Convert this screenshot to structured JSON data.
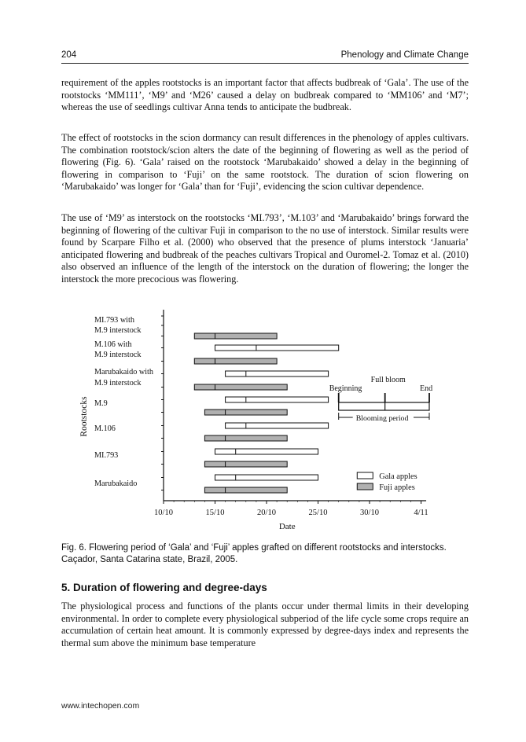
{
  "header": {
    "page_number": "204",
    "running_title": "Phenology and Climate Change"
  },
  "paragraphs": [
    "requirement of the apples rootstocks is an important factor that affects budbreak of ‘Gala’. The use of the rootstocks ‘MM111’, ‘M9’ and ‘M26’ caused a delay on budbreak compared to ‘MM106’ and ‘M7’; whereas the use of seedlings cultivar Anna tends to anticipate the budbreak.",
    "The effect of rootstocks in the scion dormancy can result differences in the phenology of apples cultivars. The combination rootstock/scion alters the date of the beginning of flowering as well as the period of flowering (Fig. 6). ‘Gala’ raised on the rootstock ‘Marubakaido’ showed a delay in the beginning of flowering in comparison to ‘Fuji’ on the same rootstock. The duration of scion flowering on ‘Marubakaido’ was longer for ‘Gala’ than for ‘Fuji’, evidencing the scion cultivar dependence.",
    "The use of ‘M9’ as interstock on the rootstocks ‘MI.793’, ‘M.103’ and ‘Marubakaido’ brings forward the beginning of flowering of the cultivar Fuji in comparison to the no use of interstock. Similar results were found by Scarpare Filho et al. (2000) who observed that the presence of plums interstock ‘Januaria’ anticipated flowering and budbreak of the peaches cultivars Tropical and Ouromel-2. Tomaz et al. (2010) also observed an influence of the length of the interstock on the duration of flowering; the longer the interstock the more precocious was flowering."
  ],
  "figure": {
    "caption": "Fig. 6. Flowering period of ‘Gala’ and ‘Fuji’ apples grafted on different rootstocks and interstocks. Caçador, Santa Catarina state, Brazil, 2005."
  },
  "section": {
    "heading": "5. Duration of flowering and degree-days",
    "paragraph": "The physiological process and functions of the plants occur under thermal limits in their developing environmental. In order to complete every physiological subperiod of the life cycle some crops require an accumulation of certain heat amount. It is commonly expressed by degree-days index and represents the thermal sum above the minimum base temperature"
  },
  "footer": {
    "url": "www.intechopen.com"
  },
  "chart_data": {
    "type": "bar",
    "subtype": "floating-range (Gantt-style)",
    "xlabel": "Date",
    "ylabel": "Rootstocks",
    "x_unit": "days since 10/10 (2005)",
    "x_tick_labels": [
      "10/10",
      "15/10",
      "20/10",
      "25/10",
      "30/10",
      "4/11"
    ],
    "x_tick_days": [
      0,
      5,
      10,
      15,
      20,
      25
    ],
    "xlim": [
      0,
      25.5
    ],
    "grid": false,
    "legend": {
      "placement": "bottom-right",
      "items": [
        {
          "name": "Gala apples",
          "fill": "#ffffff"
        },
        {
          "name": "Fuji apples",
          "fill": "#b0b0b0"
        }
      ]
    },
    "categories": [
      {
        "label_lines": [
          "MI.793 with",
          "M.9 interstock"
        ],
        "gala": null,
        "fuji": {
          "start": 3,
          "full_bloom": 5,
          "end": 11
        }
      },
      {
        "label_lines": [
          "M.106 with",
          "M.9 interstock"
        ],
        "gala": {
          "start": 5,
          "full_bloom": 9,
          "end": 17
        },
        "fuji": {
          "start": 3,
          "full_bloom": 5,
          "end": 11
        }
      },
      {
        "label_lines": [
          "Marubakaido with",
          "M.9 interstock"
        ],
        "gala": {
          "start": 6,
          "full_bloom": 8,
          "end": 16
        },
        "fuji": {
          "start": 3,
          "full_bloom": 5,
          "end": 12
        }
      },
      {
        "label_lines": [
          "M.9"
        ],
        "gala": {
          "start": 6,
          "full_bloom": 8,
          "end": 16
        },
        "fuji": {
          "start": 4,
          "full_bloom": 6,
          "end": 12
        }
      },
      {
        "label_lines": [
          "M.106"
        ],
        "gala": {
          "start": 6,
          "full_bloom": 8,
          "end": 16
        },
        "fuji": {
          "start": 4,
          "full_bloom": 6,
          "end": 12
        }
      },
      {
        "label_lines": [
          "MI.793"
        ],
        "gala": {
          "start": 5,
          "full_bloom": 7,
          "end": 15
        },
        "fuji": {
          "start": 4,
          "full_bloom": 6,
          "end": 12
        }
      },
      {
        "label_lines": [
          "Marubakaido"
        ],
        "gala": {
          "start": 5,
          "full_bloom": 7,
          "end": 15
        },
        "fuji": {
          "start": 4,
          "full_bloom": 6,
          "end": 12
        }
      }
    ],
    "annotation": {
      "beginning": "Beginning",
      "full_bloom": "Full bloom",
      "end": "End",
      "period": "Blooming period"
    },
    "colors": {
      "gala_fill": "#ffffff",
      "fuji_fill": "#b0b0b0",
      "stroke": "#111111"
    }
  }
}
